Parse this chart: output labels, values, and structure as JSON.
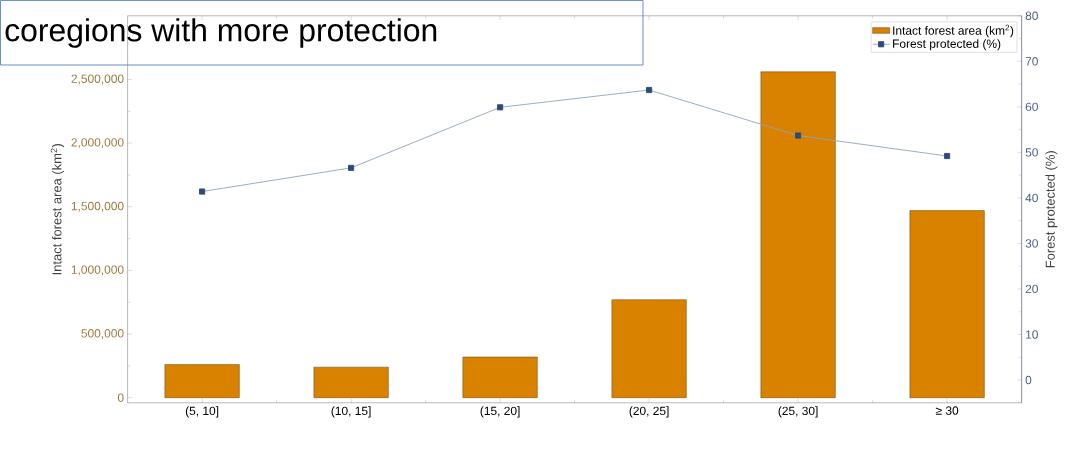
{
  "chart_data": {
    "type": "bar",
    "annotations": [
      "coregions with more protection"
    ],
    "categories": [
      "(5, 10]",
      "(10, 15]",
      "(15, 20]",
      "(20, 25]",
      "(25, 30]",
      "≥ 30"
    ],
    "series": [
      {
        "name": "Intact forest area (km$^{2}$)",
        "color": "#d98200",
        "values": [
          260000,
          240000,
          320000,
          770000,
          2560000,
          1470000
        ]
      },
      {
        "name": "Forest protected (%)",
        "type": "line",
        "axis": "y2",
        "color": "#8fa3c0",
        "marker": "square",
        "values": [
          41.4,
          46.6,
          59.9,
          63.7,
          53.7,
          49.2
        ]
      }
    ],
    "ylabel": "Intact forest area (km$^{2}$)",
    "y2label": "Forest protected (%)",
    "ylim": [
      -40000,
      3000000
    ],
    "yticks": [
      0,
      {
        "value": 500000,
        "label": "500,000"
      },
      {
        "value": 1000000,
        "label": "1,000,000"
      },
      {
        "value": 1500000,
        "label": "1,500,000"
      },
      {
        "value": 2000000,
        "label": "2,000,000"
      },
      {
        "value": 2500000,
        "label": "2,500,000"
      }
    ],
    "y2lim": [
      -5,
      80
    ],
    "y2ticks": [
      0,
      10,
      20,
      30,
      40,
      50,
      60,
      70,
      80
    ],
    "legend": "top right"
  }
}
